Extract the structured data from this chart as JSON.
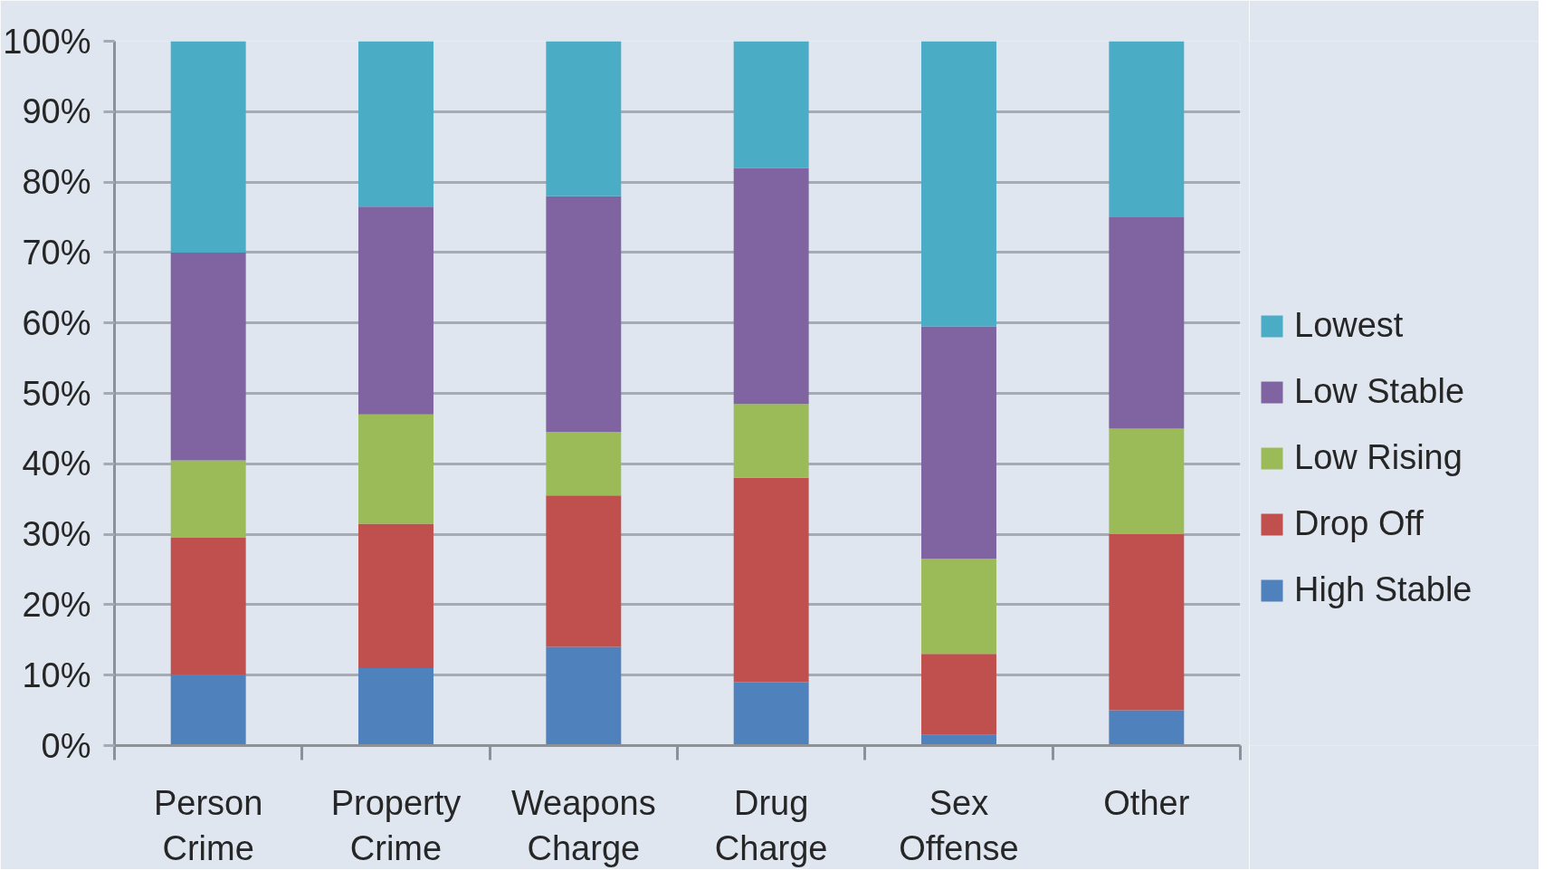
{
  "chart_data": {
    "type": "bar",
    "stacked": true,
    "categories": [
      "Person Crime",
      "Property Crime",
      "Weapons Charge",
      "Drug Charge",
      "Sex Offense",
      "Other"
    ],
    "series": [
      {
        "name": "High Stable",
        "color": "#4f81bd",
        "values": [
          10,
          11,
          14,
          9,
          1.5,
          5
        ]
      },
      {
        "name": "Drop Off",
        "color": "#c0504d",
        "values": [
          19.5,
          20.5,
          21.5,
          29,
          11.5,
          25
        ]
      },
      {
        "name": "Low Rising",
        "color": "#9bbb59",
        "values": [
          11,
          15.5,
          9,
          10.5,
          13.5,
          15
        ]
      },
      {
        "name": "Low Stable",
        "color": "#8064a2",
        "values": [
          29.5,
          29.5,
          33.5,
          33.5,
          33,
          30
        ]
      },
      {
        "name": "Lowest",
        "color": "#4bacc6",
        "values": [
          30,
          23.5,
          22,
          18,
          40.5,
          25
        ]
      }
    ],
    "ylim": [
      0,
      100
    ],
    "yticks": [
      {
        "value": 0,
        "label": "0%"
      },
      {
        "value": 10,
        "label": "10%"
      },
      {
        "value": 20,
        "label": "20%"
      },
      {
        "value": 30,
        "label": "30%"
      },
      {
        "value": 40,
        "label": "40%"
      },
      {
        "value": 50,
        "label": "50%"
      },
      {
        "value": 60,
        "label": "60%"
      },
      {
        "value": 70,
        "label": "70%"
      },
      {
        "value": 80,
        "label": "80%"
      },
      {
        "value": 90,
        "label": "90%"
      },
      {
        "value": 100,
        "label": "100%"
      }
    ],
    "grid": "y",
    "legend": "right"
  }
}
